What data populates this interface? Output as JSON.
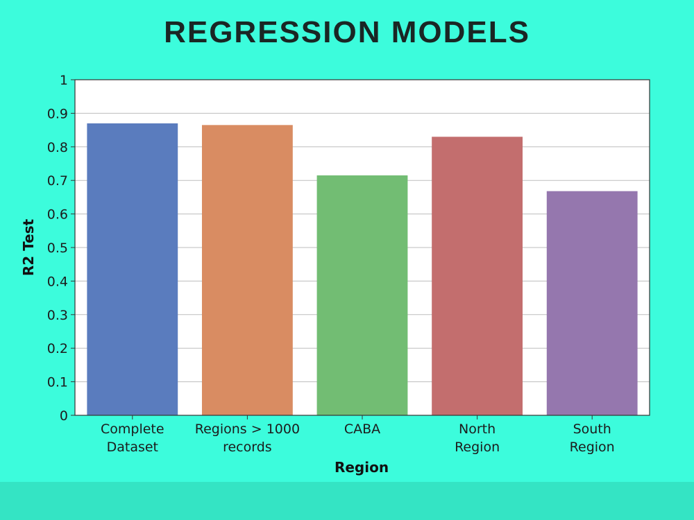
{
  "page": {
    "title": "REGRESSION MODELS",
    "background_color": "#3cfcdc",
    "band_color": "#34e4c4"
  },
  "chart_data": {
    "type": "bar",
    "categories": [
      [
        "Complete",
        "Dataset"
      ],
      [
        "Regions > 1000",
        "records"
      ],
      [
        "CABA"
      ],
      [
        "North",
        "Region"
      ],
      [
        "South",
        "Region"
      ]
    ],
    "values": [
      0.87,
      0.865,
      0.715,
      0.83,
      0.668
    ],
    "colors": [
      "#5a7cbe",
      "#d98c62",
      "#72bd73",
      "#c36e6e",
      "#9577ae"
    ],
    "xlabel": "Region",
    "ylabel": "R2 Test",
    "ylim": [
      0,
      1
    ],
    "yticks": [
      0,
      0.1,
      0.2,
      0.3,
      0.4,
      0.5,
      0.6,
      0.7,
      0.8,
      0.9,
      1
    ],
    "ytick_labels": [
      "0",
      "0.1",
      "0.2",
      "0.3",
      "0.4",
      "0.5",
      "0.6",
      "0.7",
      "0.8",
      "0.9",
      "1"
    ],
    "grid": "horizontal"
  }
}
